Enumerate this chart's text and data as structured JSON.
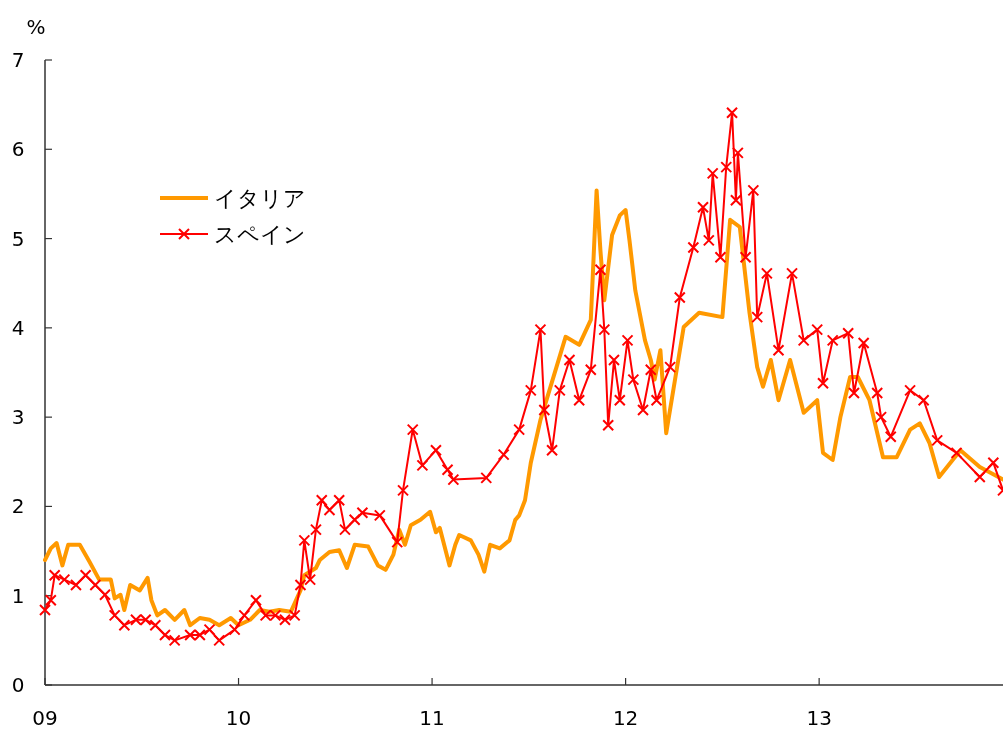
{
  "chart_data": {
    "type": "line",
    "ylabel": "%",
    "xlim": [
      2009,
      2013.95
    ],
    "ylim": [
      0,
      7
    ],
    "xticks": [
      {
        "value": 2009,
        "label": "09"
      },
      {
        "value": 2010,
        "label": "10"
      },
      {
        "value": 2011,
        "label": "11"
      },
      {
        "value": 2012,
        "label": "12"
      },
      {
        "value": 2013,
        "label": "13"
      }
    ],
    "yticks": [
      0,
      1,
      2,
      3,
      4,
      5,
      6,
      7
    ],
    "grid": false,
    "legend": "top left",
    "line_style": "solid",
    "series": [
      {
        "name": "イタリア",
        "color": "#ff9900",
        "marker": "none",
        "x": [
          2009.0,
          2009.03,
          2009.06,
          2009.09,
          2009.12,
          2009.18,
          2009.23,
          2009.28,
          2009.34,
          2009.36,
          2009.39,
          2009.41,
          2009.44,
          2009.49,
          2009.53,
          2009.55,
          2009.58,
          2009.62,
          2009.67,
          2009.72,
          2009.75,
          2009.8,
          2009.85,
          2009.9,
          2009.96,
          2010.0,
          2010.06,
          2010.11,
          2010.16,
          2010.21,
          2010.27,
          2010.32,
          2010.34,
          2010.4,
          2010.42,
          2010.47,
          2010.52,
          2010.56,
          2010.6,
          2010.67,
          2010.72,
          2010.76,
          2010.8,
          2010.83,
          2010.86,
          2010.89,
          2010.94,
          2010.99,
          2011.02,
          2011.04,
          2011.09,
          2011.12,
          2011.14,
          2011.2,
          2011.24,
          2011.27,
          2011.3,
          2011.35,
          2011.4,
          2011.43,
          2011.45,
          2011.48,
          2011.51,
          2011.56,
          2011.69,
          2011.76,
          2011.82,
          2011.85,
          2011.87,
          2011.89,
          2011.93,
          2011.97,
          2012.0,
          2012.02,
          2012.05,
          2012.1,
          2012.13,
          2012.15,
          2012.18,
          2012.21,
          2012.3,
          2012.38,
          2012.5,
          2012.54,
          2012.59,
          2012.64,
          2012.68,
          2012.71,
          2012.75,
          2012.79,
          2012.85,
          2012.92,
          2012.99,
          2013.02,
          2013.07,
          2013.11,
          2013.16,
          2013.2,
          2013.26,
          2013.33,
          2013.4,
          2013.47,
          2013.52,
          2013.57,
          2013.62,
          2013.73,
          2013.83,
          2013.95
        ],
        "values": [
          1.4,
          1.53,
          1.59,
          1.34,
          1.57,
          1.57,
          1.38,
          1.18,
          1.18,
          0.97,
          1.01,
          0.84,
          1.12,
          1.06,
          1.2,
          0.95,
          0.78,
          0.84,
          0.73,
          0.84,
          0.67,
          0.75,
          0.73,
          0.67,
          0.75,
          0.67,
          0.73,
          0.84,
          0.82,
          0.84,
          0.82,
          1.06,
          1.23,
          1.31,
          1.4,
          1.49,
          1.51,
          1.31,
          1.57,
          1.55,
          1.34,
          1.29,
          1.46,
          1.74,
          1.57,
          1.79,
          1.85,
          1.94,
          1.71,
          1.76,
          1.34,
          1.57,
          1.68,
          1.62,
          1.46,
          1.27,
          1.57,
          1.53,
          1.62,
          1.85,
          1.9,
          2.07,
          2.49,
          2.97,
          3.9,
          3.81,
          4.09,
          5.54,
          4.87,
          4.31,
          5.04,
          5.26,
          5.32,
          4.98,
          4.42,
          3.86,
          3.64,
          3.42,
          3.75,
          2.82,
          4.01,
          4.17,
          4.12,
          5.21,
          5.13,
          4.17,
          3.56,
          3.34,
          3.64,
          3.19,
          3.64,
          3.05,
          3.19,
          2.6,
          2.52,
          3.0,
          3.45,
          3.45,
          3.19,
          2.55,
          2.55,
          2.86,
          2.93,
          2.71,
          2.33,
          2.63,
          2.44,
          2.3
        ]
      },
      {
        "name": "スペイン",
        "color": "#ff0000",
        "marker": "cross",
        "x": [
          2009.0,
          2009.03,
          2009.05,
          2009.1,
          2009.16,
          2009.21,
          2009.26,
          2009.31,
          2009.36,
          2009.41,
          2009.47,
          2009.52,
          2009.57,
          2009.62,
          2009.67,
          2009.75,
          2009.8,
          2009.85,
          2009.9,
          2009.98,
          2010.03,
          2010.09,
          2010.14,
          2010.19,
          2010.24,
          2010.29,
          2010.32,
          2010.34,
          2010.37,
          2010.4,
          2010.43,
          2010.47,
          2010.52,
          2010.55,
          2010.6,
          2010.64,
          2010.73,
          2010.82,
          2010.85,
          2010.9,
          2010.95,
          2011.02,
          2011.08,
          2011.11,
          2011.28,
          2011.37,
          2011.45,
          2011.51,
          2011.56,
          2011.58,
          2011.62,
          2011.66,
          2011.71,
          2011.76,
          2011.82,
          2011.87,
          2011.89,
          2011.91,
          2011.94,
          2011.97,
          2012.01,
          2012.04,
          2012.09,
          2012.13,
          2012.16,
          2012.23,
          2012.28,
          2012.35,
          2012.4,
          2012.43,
          2012.45,
          2012.49,
          2012.52,
          2012.55,
          2012.57,
          2012.58,
          2012.62,
          2012.66,
          2012.68,
          2012.73,
          2012.79,
          2012.86,
          2012.92,
          2012.99,
          2013.02,
          2013.07,
          2013.15,
          2013.18,
          2013.23,
          2013.3,
          2013.32,
          2013.37,
          2013.47,
          2013.54,
          2013.61,
          2013.71,
          2013.83,
          2013.9,
          2013.95
        ],
        "values": [
          0.84,
          0.95,
          1.23,
          1.18,
          1.12,
          1.23,
          1.12,
          1.01,
          0.78,
          0.67,
          0.73,
          0.73,
          0.67,
          0.56,
          0.5,
          0.56,
          0.56,
          0.62,
          0.5,
          0.62,
          0.78,
          0.95,
          0.78,
          0.78,
          0.73,
          0.78,
          1.12,
          1.62,
          1.18,
          1.74,
          2.07,
          1.96,
          2.07,
          1.74,
          1.85,
          1.93,
          1.9,
          1.6,
          2.18,
          2.86,
          2.46,
          2.63,
          2.41,
          2.3,
          2.32,
          2.58,
          2.86,
          3.3,
          3.98,
          3.08,
          2.63,
          3.3,
          3.64,
          3.19,
          3.53,
          4.65,
          3.98,
          2.91,
          3.64,
          3.19,
          3.86,
          3.42,
          3.08,
          3.53,
          3.19,
          3.56,
          4.34,
          4.9,
          5.35,
          4.98,
          5.73,
          4.79,
          5.8,
          6.41,
          5.43,
          5.96,
          4.79,
          5.54,
          4.12,
          4.61,
          3.75,
          4.61,
          3.86,
          3.98,
          3.38,
          3.86,
          3.94,
          3.27,
          3.83,
          3.27,
          3.0,
          2.78,
          3.3,
          3.19,
          2.74,
          2.6,
          2.33,
          2.49,
          2.18
        ]
      }
    ]
  }
}
